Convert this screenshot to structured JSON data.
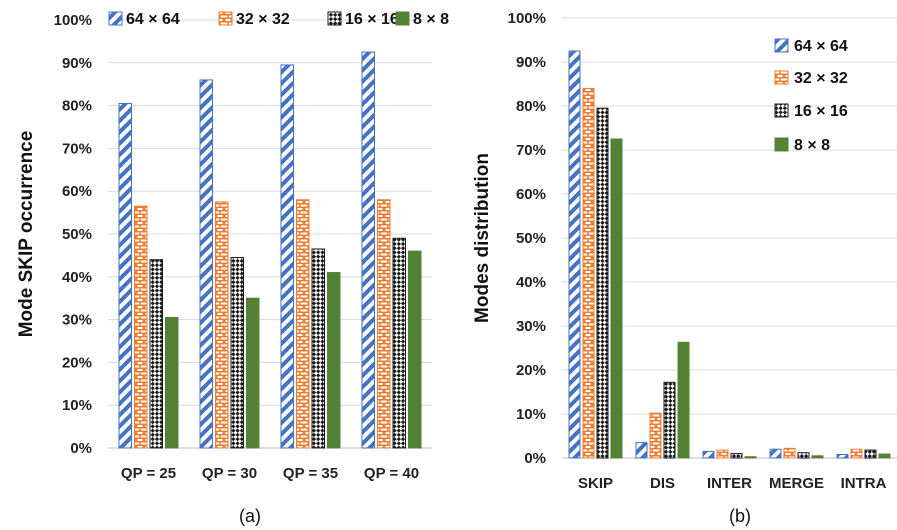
{
  "colors": {
    "s64": "#4472C4",
    "s32": "#ED7D31",
    "s16": "#000000",
    "s8": "#548235",
    "grid": "#d9d9d9"
  },
  "chart_data": [
    {
      "type": "bar",
      "caption": "(a)",
      "ylabel": "Mode SKIP occurrence",
      "xlabel": "",
      "ylim": [
        0,
        100
      ],
      "yticks": [
        "0%",
        "10%",
        "20%",
        "30%",
        "40%",
        "50%",
        "60%",
        "70%",
        "80%",
        "90%",
        "100%"
      ],
      "grid": true,
      "legend": "top",
      "categories": [
        "QP = 25",
        "QP = 30",
        "QP = 35",
        "QP = 40"
      ],
      "series": [
        {
          "name": "64 × 64",
          "pattern": "diagonal-stripes",
          "values": [
            80.5,
            86.0,
            89.5,
            92.5
          ]
        },
        {
          "name": "32 × 32",
          "pattern": "brick",
          "values": [
            56.5,
            57.5,
            58.0,
            58.0
          ]
        },
        {
          "name": "16 × 16",
          "pattern": "checker",
          "values": [
            44.0,
            44.5,
            46.5,
            49.0
          ]
        },
        {
          "name": "8 × 8",
          "pattern": "solid",
          "values": [
            30.5,
            35.0,
            41.0,
            46.0
          ]
        }
      ]
    },
    {
      "type": "bar",
      "caption": "(b)",
      "ylabel": "Modes distribution",
      "xlabel": "",
      "ylim": [
        0,
        100
      ],
      "yticks": [
        "0%",
        "10%",
        "20%",
        "30%",
        "40%",
        "50%",
        "60%",
        "70%",
        "80%",
        "90%",
        "100%"
      ],
      "grid": true,
      "legend": "top-right",
      "categories": [
        "SKIP",
        "DIS",
        "INTER",
        "MERGE",
        "INTRA"
      ],
      "series": [
        {
          "name": "64 × 64",
          "pattern": "diagonal-stripes",
          "values": [
            92.5,
            3.5,
            1.5,
            2.0,
            0.8
          ]
        },
        {
          "name": "32 × 32",
          "pattern": "brick",
          "values": [
            84.0,
            10.2,
            1.8,
            2.2,
            2.0
          ]
        },
        {
          "name": "16 × 16",
          "pattern": "checker",
          "values": [
            79.5,
            17.2,
            1.0,
            1.2,
            1.8
          ]
        },
        {
          "name": "8 × 8",
          "pattern": "solid",
          "values": [
            72.5,
            26.3,
            0.3,
            0.5,
            0.9
          ]
        }
      ]
    }
  ]
}
